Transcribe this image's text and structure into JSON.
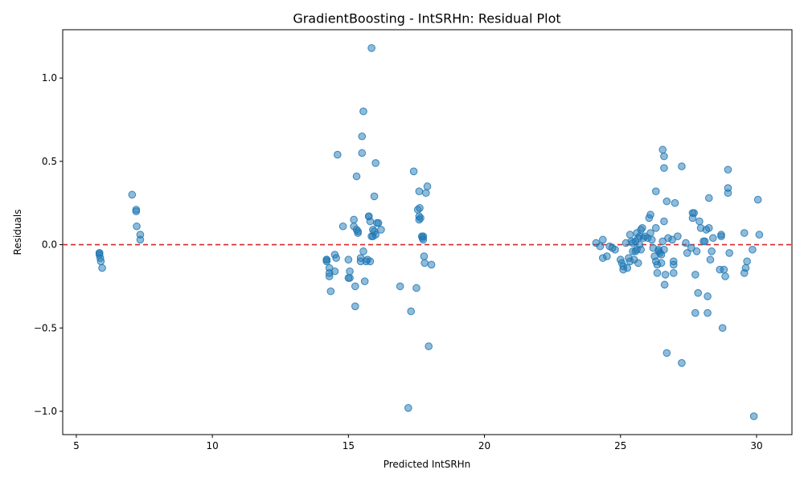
{
  "chart_data": {
    "type": "scatter",
    "title": "GradientBoosting - IntSRHn: Residual Plot",
    "xlabel": "Predicted IntSRHn",
    "ylabel": "Residuals",
    "xlim": [
      4.5,
      31.3
    ],
    "ylim": [
      -1.14,
      1.29
    ],
    "xticks": [
      5,
      10,
      15,
      20,
      25,
      30
    ],
    "xtick_labels": [
      "5",
      "10",
      "15",
      "20",
      "25",
      "30"
    ],
    "yticks": [
      -1.0,
      -0.5,
      0.0,
      0.5,
      1.0
    ],
    "ytick_labels": [
      "−1.0",
      "−0.5",
      "0.0",
      "0.5",
      "1.0"
    ],
    "grid": false,
    "reference_line": {
      "y": 0,
      "color": "#d62728",
      "style": "dashed"
    },
    "point_color": "#1f77b4",
    "series": [
      {
        "x": [
          5.85,
          5.85,
          5.85,
          5.88,
          5.9,
          5.95,
          7.05,
          7.2,
          7.2,
          7.22,
          7.35,
          7.35,
          14.2,
          14.2,
          14.2,
          14.3,
          14.3,
          14.3,
          14.35,
          14.5,
          14.5,
          14.55,
          14.6,
          14.8,
          15.0,
          15.0,
          15.05,
          15.05,
          15.2,
          15.2,
          15.25,
          15.25,
          15.3,
          15.3,
          15.35,
          15.35,
          15.45,
          15.45,
          15.5,
          15.5,
          15.55,
          15.55,
          15.6,
          15.65,
          15.7,
          15.75,
          15.75,
          15.8,
          15.8,
          15.85,
          15.85,
          15.9,
          15.9,
          15.95,
          15.95,
          16.0,
          16.0,
          16.05,
          16.1,
          16.2,
          16.9,
          17.2,
          17.3,
          17.4,
          17.5,
          17.55,
          17.6,
          17.6,
          17.6,
          17.62,
          17.65,
          17.7,
          17.72,
          17.75,
          17.75,
          17.78,
          17.8,
          17.85,
          17.9,
          17.95,
          18.05,
          24.1,
          24.25,
          24.35,
          24.35,
          24.5,
          24.6,
          24.7,
          24.8,
          25.0,
          25.05,
          25.1,
          25.1,
          25.2,
          25.25,
          25.3,
          25.35,
          25.35,
          25.4,
          25.45,
          25.45,
          25.5,
          25.55,
          25.55,
          25.6,
          25.6,
          25.65,
          25.65,
          25.7,
          25.7,
          25.75,
          25.75,
          25.8,
          25.85,
          25.9,
          26.0,
          26.05,
          26.1,
          26.1,
          26.15,
          26.2,
          26.25,
          26.3,
          26.3,
          26.3,
          26.35,
          26.35,
          26.4,
          26.4,
          26.45,
          26.5,
          26.5,
          26.55,
          26.55,
          26.6,
          26.6,
          26.6,
          26.6,
          26.62,
          26.65,
          26.7,
          26.75,
          26.7,
          26.9,
          26.95,
          26.95,
          26.95,
          27.0,
          27.1,
          27.25,
          27.25,
          27.4,
          27.45,
          27.6,
          27.65,
          27.65,
          27.7,
          27.75,
          27.75,
          27.8,
          27.85,
          27.9,
          27.95,
          28.05,
          28.1,
          28.15,
          28.2,
          28.2,
          28.25,
          28.25,
          28.3,
          28.35,
          28.4,
          28.65,
          28.7,
          28.7,
          28.75,
          28.8,
          28.85,
          28.95,
          28.95,
          28.95,
          29.0,
          29.55,
          29.55,
          29.6,
          29.65,
          29.85,
          29.9,
          30.05,
          30.1
        ],
        "y": [
          -0.05,
          -0.06,
          -0.05,
          -0.08,
          -0.1,
          -0.14,
          0.3,
          0.21,
          0.2,
          0.11,
          0.06,
          0.03,
          -0.09,
          -0.1,
          -0.09,
          -0.14,
          -0.17,
          -0.19,
          -0.28,
          -0.06,
          -0.16,
          -0.08,
          0.54,
          0.11,
          -0.09,
          -0.2,
          -0.16,
          -0.2,
          0.15,
          0.11,
          -0.37,
          -0.25,
          0.41,
          0.09,
          0.07,
          0.08,
          -0.08,
          -0.1,
          0.65,
          0.55,
          0.8,
          -0.04,
          -0.22,
          -0.1,
          -0.09,
          0.17,
          0.17,
          -0.1,
          0.14,
          1.18,
          0.05,
          0.05,
          0.09,
          0.08,
          0.29,
          0.49,
          0.06,
          0.13,
          0.13,
          0.09,
          -0.25,
          -0.98,
          -0.4,
          0.44,
          -0.26,
          0.21,
          0.32,
          0.17,
          0.15,
          0.22,
          0.16,
          0.05,
          0.04,
          0.05,
          0.03,
          -0.07,
          -0.11,
          0.31,
          0.35,
          -0.61,
          -0.12,
          0.01,
          -0.01,
          0.03,
          -0.08,
          -0.07,
          -0.01,
          -0.02,
          -0.03,
          -0.09,
          -0.11,
          -0.13,
          -0.15,
          0.01,
          -0.14,
          -0.08,
          0.06,
          -0.1,
          0.02,
          -0.04,
          0.01,
          -0.09,
          0.02,
          -0.04,
          -0.03,
          0.07,
          -0.11,
          0.04,
          0.0,
          0.05,
          0.09,
          -0.03,
          0.1,
          0.04,
          0.05,
          0.04,
          0.16,
          0.07,
          0.18,
          0.03,
          -0.02,
          -0.07,
          0.32,
          0.1,
          -0.1,
          -0.12,
          -0.17,
          -0.04,
          -0.03,
          -0.05,
          -0.11,
          -0.06,
          0.02,
          0.57,
          0.46,
          0.53,
          0.14,
          -0.03,
          -0.24,
          -0.18,
          -0.65,
          0.04,
          0.26,
          0.03,
          -0.1,
          -0.12,
          -0.17,
          0.25,
          0.05,
          0.47,
          -0.71,
          0.01,
          -0.05,
          -0.02,
          0.19,
          0.16,
          0.19,
          -0.18,
          -0.41,
          -0.04,
          -0.29,
          0.14,
          0.1,
          0.02,
          0.02,
          0.09,
          -0.41,
          -0.31,
          0.28,
          0.1,
          -0.09,
          -0.04,
          0.04,
          -0.15,
          0.05,
          0.06,
          -0.5,
          -0.15,
          -0.19,
          0.34,
          0.31,
          0.45,
          -0.05,
          0.07,
          -0.17,
          -0.14,
          -0.1,
          -0.03,
          -1.03,
          0.27,
          0.06
        ]
      }
    ]
  }
}
